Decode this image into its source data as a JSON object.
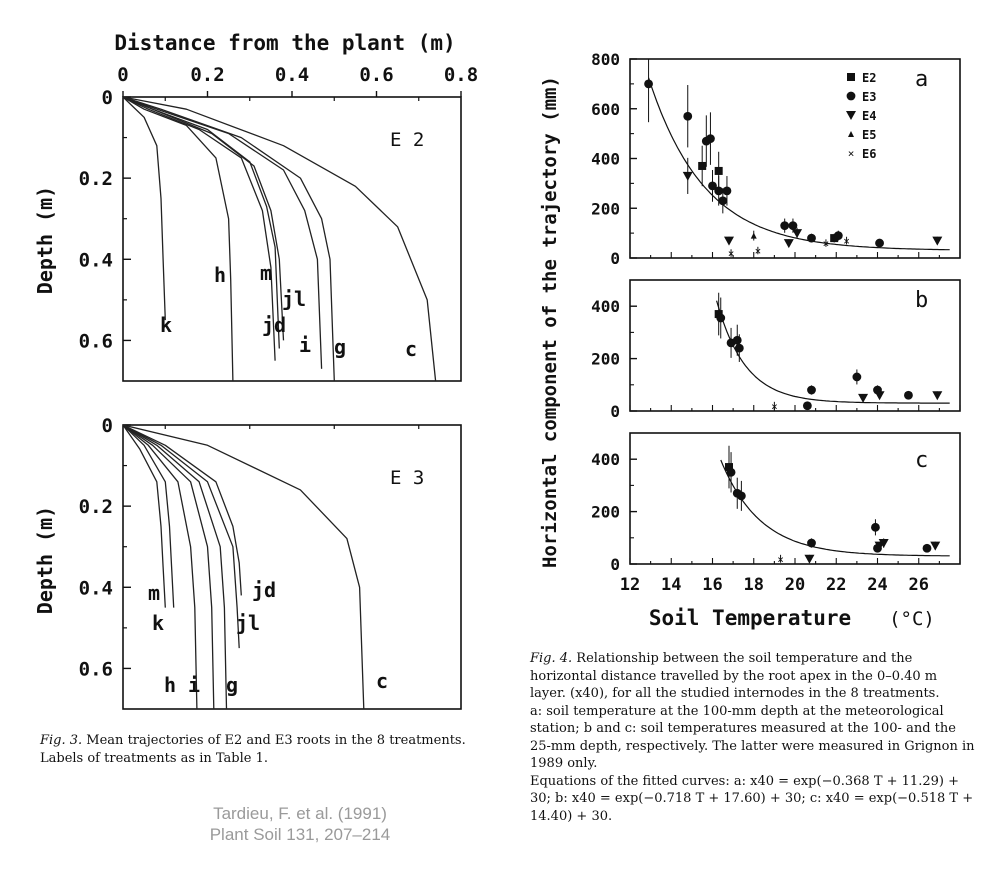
{
  "fig3": {
    "top_axis_title": "Distance from the plant (m)",
    "x_ticks": [
      "0",
      "0.2",
      "0.4",
      "0.6",
      "0.8"
    ],
    "y_label": "Depth (m)",
    "y_ticks": [
      "0",
      "0.2",
      "0.4",
      "0.6"
    ],
    "caption_prefix": "Fig. 3.",
    "caption_body": " Mean trajectories of E2 and E3 roots in the 8 treatments. Labels of treatments as in Table 1."
  },
  "fig4": {
    "y_label": "Horizontal component of the trajectory (mm)",
    "x_label": "Soil Temperature",
    "x_unit": "(°C)",
    "x_ticks": [
      "12",
      "14",
      "16",
      "18",
      "20",
      "22",
      "24",
      "26"
    ],
    "legend": [
      "E2",
      "E3",
      "E4",
      "E5",
      "E6"
    ],
    "caption_prefix": "Fig. 4.",
    "caption_line1": " Relationship between the soil temperature and the horizontal distance travelled by the root apex in the 0–0.40 m layer. (x40), for all the studied internodes in the 8 treatments.",
    "caption_line2": "a: soil temperature at the 100-mm depth at the meteorological station; b and c: soil temperatures measured at the 100- and the 25-mm depth, respectively. The latter were measured in Grignon in 1989 only.",
    "caption_line3": "Equations of the fitted curves: a: x40 = exp(−0.368 T + 11.29) + 30; b: x40 = exp(−0.718 T + 17.60) + 30; c: x40 = exp(−0.518 T + 14.40) + 30."
  },
  "citation": {
    "line1": "Tardieu, F. et al. (1991)",
    "line2": "Plant Soil 131, 207–214"
  },
  "chart_data": [
    {
      "type": "line",
      "panel": "E 2",
      "xlim": [
        0,
        0.8
      ],
      "ylim": [
        0.7,
        0
      ],
      "series": [
        {
          "name": "k",
          "x": [
            0,
            0.02,
            0.05,
            0.08,
            0.09,
            0.095,
            0.1
          ],
          "y": [
            0,
            0.02,
            0.05,
            0.12,
            0.25,
            0.4,
            0.55
          ]
        },
        {
          "name": "h",
          "x": [
            0,
            0.05,
            0.15,
            0.22,
            0.25,
            0.255,
            0.26
          ],
          "y": [
            0,
            0.03,
            0.07,
            0.15,
            0.3,
            0.45,
            0.7
          ]
        },
        {
          "name": "jd",
          "x": [
            0,
            0.06,
            0.18,
            0.28,
            0.33,
            0.35,
            0.36
          ],
          "y": [
            0,
            0.03,
            0.08,
            0.15,
            0.28,
            0.42,
            0.65
          ]
        },
        {
          "name": "m",
          "x": [
            0,
            0.07,
            0.2,
            0.3,
            0.34,
            0.36,
            0.37
          ],
          "y": [
            0,
            0.03,
            0.08,
            0.16,
            0.27,
            0.37,
            0.62
          ]
        },
        {
          "name": "jl",
          "x": [
            0,
            0.07,
            0.21,
            0.31,
            0.35,
            0.37,
            0.38
          ],
          "y": [
            0,
            0.03,
            0.09,
            0.17,
            0.28,
            0.4,
            0.6
          ]
        },
        {
          "name": "i",
          "x": [
            0,
            0.08,
            0.25,
            0.38,
            0.43,
            0.46,
            0.47
          ],
          "y": [
            0,
            0.03,
            0.09,
            0.18,
            0.28,
            0.4,
            0.67
          ]
        },
        {
          "name": "g",
          "x": [
            0,
            0.09,
            0.28,
            0.42,
            0.47,
            0.49,
            0.5
          ],
          "y": [
            0,
            0.03,
            0.1,
            0.2,
            0.3,
            0.4,
            0.7
          ]
        },
        {
          "name": "c",
          "x": [
            0,
            0.15,
            0.38,
            0.55,
            0.65,
            0.72,
            0.74
          ],
          "y": [
            0,
            0.03,
            0.12,
            0.22,
            0.32,
            0.5,
            0.7
          ]
        }
      ],
      "annotations": [
        "k",
        "h",
        "m",
        "jl",
        "jd",
        "i",
        "g",
        "c"
      ]
    },
    {
      "type": "line",
      "panel": "E 3",
      "xlim": [
        0,
        0.8
      ],
      "ylim": [
        0.7,
        0
      ],
      "series": [
        {
          "name": "m",
          "x": [
            0,
            0.04,
            0.08,
            0.09,
            0.095,
            0.1
          ],
          "y": [
            0,
            0.06,
            0.14,
            0.25,
            0.35,
            0.45
          ]
        },
        {
          "name": "k",
          "x": [
            0,
            0.05,
            0.1,
            0.11,
            0.115,
            0.12
          ],
          "y": [
            0,
            0.05,
            0.14,
            0.25,
            0.35,
            0.45
          ]
        },
        {
          "name": "h",
          "x": [
            0,
            0.06,
            0.13,
            0.16,
            0.17,
            0.175
          ],
          "y": [
            0,
            0.05,
            0.14,
            0.3,
            0.45,
            0.7
          ]
        },
        {
          "name": "i",
          "x": [
            0,
            0.07,
            0.16,
            0.2,
            0.21,
            0.215
          ],
          "y": [
            0,
            0.05,
            0.14,
            0.3,
            0.45,
            0.7
          ]
        },
        {
          "name": "g",
          "x": [
            0,
            0.08,
            0.18,
            0.23,
            0.24,
            0.245
          ],
          "y": [
            0,
            0.05,
            0.14,
            0.3,
            0.45,
            0.7
          ]
        },
        {
          "name": "jl",
          "x": [
            0,
            0.09,
            0.2,
            0.26,
            0.27,
            0.275
          ],
          "y": [
            0,
            0.05,
            0.14,
            0.3,
            0.45,
            0.55
          ]
        },
        {
          "name": "jd",
          "x": [
            0,
            0.1,
            0.22,
            0.26,
            0.275,
            0.28
          ],
          "y": [
            0,
            0.05,
            0.14,
            0.25,
            0.34,
            0.42
          ]
        },
        {
          "name": "c",
          "x": [
            0,
            0.2,
            0.42,
            0.53,
            0.56,
            0.57
          ],
          "y": [
            0,
            0.05,
            0.16,
            0.28,
            0.4,
            0.7
          ]
        }
      ],
      "annotations": [
        "m",
        "k",
        "h",
        "i",
        "g",
        "jl",
        "jd",
        "c"
      ]
    },
    {
      "type": "scatter",
      "panel": "a",
      "xlim": [
        12,
        28
      ],
      "ylim": [
        0,
        800
      ],
      "y_ticks": [
        0,
        200,
        400,
        600,
        800
      ],
      "fit": "x40 = exp(−0.368 T + 11.29) + 30",
      "points": [
        {
          "x": 12.9,
          "y": 700,
          "s": "E3"
        },
        {
          "x": 14.8,
          "y": 570,
          "s": "E3"
        },
        {
          "x": 14.8,
          "y": 330,
          "s": "E4"
        },
        {
          "x": 15.5,
          "y": 370,
          "s": "E2"
        },
        {
          "x": 15.7,
          "y": 470,
          "s": "E3"
        },
        {
          "x": 15.9,
          "y": 480,
          "s": "E3"
        },
        {
          "x": 16.0,
          "y": 290,
          "s": "E3"
        },
        {
          "x": 16.3,
          "y": 350,
          "s": "E2"
        },
        {
          "x": 16.3,
          "y": 270,
          "s": "E3"
        },
        {
          "x": 16.5,
          "y": 230,
          "s": "E3"
        },
        {
          "x": 16.7,
          "y": 270,
          "s": "E3"
        },
        {
          "x": 16.8,
          "y": 70,
          "s": "E4"
        },
        {
          "x": 16.9,
          "y": 20,
          "s": "E6"
        },
        {
          "x": 18.0,
          "y": 90,
          "s": "E5"
        },
        {
          "x": 18.2,
          "y": 30,
          "s": "E6"
        },
        {
          "x": 19.5,
          "y": 130,
          "s": "E3"
        },
        {
          "x": 19.7,
          "y": 60,
          "s": "E4"
        },
        {
          "x": 19.9,
          "y": 130,
          "s": "E3"
        },
        {
          "x": 20.1,
          "y": 100,
          "s": "E4"
        },
        {
          "x": 20.8,
          "y": 80,
          "s": "E3"
        },
        {
          "x": 21.5,
          "y": 60,
          "s": "E6"
        },
        {
          "x": 21.9,
          "y": 80,
          "s": "E2"
        },
        {
          "x": 22.1,
          "y": 90,
          "s": "E3"
        },
        {
          "x": 22.5,
          "y": 70,
          "s": "E6"
        },
        {
          "x": 24.1,
          "y": 60,
          "s": "E3"
        },
        {
          "x": 26.9,
          "y": 70,
          "s": "E4"
        }
      ]
    },
    {
      "type": "scatter",
      "panel": "b",
      "xlim": [
        12,
        28
      ],
      "ylim": [
        0,
        500
      ],
      "y_ticks": [
        0,
        200,
        400
      ],
      "fit": "x40 = exp(−0.718 T + 17.60) + 30",
      "points": [
        {
          "x": 16.3,
          "y": 370,
          "s": "E2"
        },
        {
          "x": 16.4,
          "y": 355,
          "s": "E3"
        },
        {
          "x": 16.9,
          "y": 260,
          "s": "E3"
        },
        {
          "x": 17.2,
          "y": 270,
          "s": "E3"
        },
        {
          "x": 17.3,
          "y": 240,
          "s": "E3"
        },
        {
          "x": 19.0,
          "y": 20,
          "s": "E6"
        },
        {
          "x": 20.6,
          "y": 20,
          "s": "E3"
        },
        {
          "x": 20.8,
          "y": 80,
          "s": "E3"
        },
        {
          "x": 23.0,
          "y": 130,
          "s": "E3"
        },
        {
          "x": 23.3,
          "y": 50,
          "s": "E4"
        },
        {
          "x": 24.0,
          "y": 80,
          "s": "E3"
        },
        {
          "x": 24.1,
          "y": 60,
          "s": "E4"
        },
        {
          "x": 25.5,
          "y": 60,
          "s": "E3"
        },
        {
          "x": 26.9,
          "y": 60,
          "s": "E4"
        }
      ]
    },
    {
      "type": "scatter",
      "panel": "c",
      "xlim": [
        12,
        28
      ],
      "ylim": [
        0,
        500
      ],
      "y_ticks": [
        0,
        200,
        400
      ],
      "fit": "x40 = exp(−0.518 T + 14.40) + 30",
      "points": [
        {
          "x": 16.8,
          "y": 370,
          "s": "E2"
        },
        {
          "x": 16.9,
          "y": 350,
          "s": "E3"
        },
        {
          "x": 17.2,
          "y": 270,
          "s": "E3"
        },
        {
          "x": 17.4,
          "y": 260,
          "s": "E3"
        },
        {
          "x": 19.3,
          "y": 20,
          "s": "E6"
        },
        {
          "x": 20.7,
          "y": 20,
          "s": "E4"
        },
        {
          "x": 20.8,
          "y": 80,
          "s": "E3"
        },
        {
          "x": 23.9,
          "y": 140,
          "s": "E3"
        },
        {
          "x": 24.0,
          "y": 60,
          "s": "E3"
        },
        {
          "x": 24.1,
          "y": 70,
          "s": "E4"
        },
        {
          "x": 24.3,
          "y": 80,
          "s": "E4"
        },
        {
          "x": 26.4,
          "y": 60,
          "s": "E3"
        },
        {
          "x": 26.8,
          "y": 70,
          "s": "E4"
        }
      ]
    }
  ]
}
